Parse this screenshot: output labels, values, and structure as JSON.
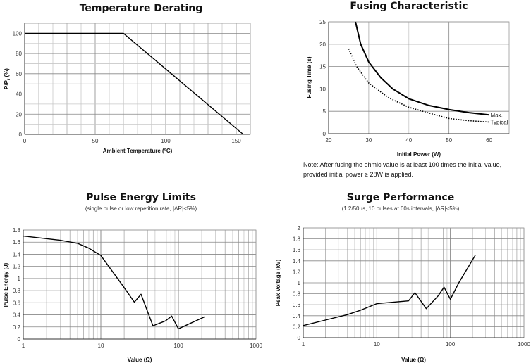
{
  "chart_data": [
    {
      "type": "line",
      "title": "Temperature Derating",
      "xlabel": "Ambient Temperature (°C)",
      "ylabel": "P/P",
      "ylabel_sub": "r",
      "ylabel_unit": " (%)",
      "xlim": [
        0,
        160
      ],
      "ylim": [
        0,
        110
      ],
      "xticks": [
        0,
        50,
        100,
        150
      ],
      "yticks": [
        0,
        20,
        40,
        60,
        80,
        100
      ],
      "grid": true,
      "series": [
        {
          "style": "solid",
          "x": [
            0,
            70,
            155
          ],
          "y": [
            100,
            100,
            0
          ]
        }
      ]
    },
    {
      "type": "line",
      "title": "Fusing Characteristic",
      "xlabel": "Initial Power (W)",
      "ylabel": "Fusing Time (s)",
      "xlim": [
        20,
        65
      ],
      "ylim": [
        0,
        25
      ],
      "xticks": [
        20,
        30,
        40,
        50,
        60
      ],
      "yticks": [
        0,
        5,
        10,
        15,
        20,
        25
      ],
      "grid": true,
      "series": [
        {
          "name": "Max.",
          "style": "solid",
          "x": [
            26.7,
            28,
            30,
            33,
            36,
            40,
            45,
            50,
            55,
            60
          ],
          "y": [
            25,
            20,
            16,
            12.5,
            10,
            7.8,
            6.3,
            5.4,
            4.7,
            4.2
          ]
        },
        {
          "name": "Typical",
          "style": "dotted",
          "x": [
            25,
            27,
            30,
            35,
            40,
            45,
            50,
            55,
            60
          ],
          "y": [
            19,
            15,
            11.3,
            8,
            5.9,
            4.6,
            3.4,
            2.9,
            2.6
          ]
        }
      ],
      "note": [
        "Note: After fusing the ohmic value is at least 100 times the initial value,",
        "provided initial power ≥ 28W is applied."
      ]
    },
    {
      "type": "line",
      "title": "Pulse Energy Limits",
      "subtitle": "(single pulse or low repetition rate, |ΔR|<5%)",
      "xlabel": "Value (Ω)",
      "ylabel": "Pulse Energy (J)",
      "xscale": "log",
      "xlim": [
        1,
        1000
      ],
      "ylim": [
        0,
        1.8
      ],
      "xticks": [
        1,
        10,
        100,
        1000
      ],
      "yticks": [
        0,
        0.2,
        0.4,
        0.6,
        0.8,
        1,
        1.2,
        1.4,
        1.6,
        1.8
      ],
      "ytick_labels": [
        "0",
        "0.2",
        "0.4",
        "0.6",
        "0.8",
        "1",
        "1.2",
        "1.4",
        "1.6",
        "1.8"
      ],
      "grid": true,
      "series": [
        {
          "style": "solid",
          "x": [
            1,
            3,
            5,
            7,
            10,
            20,
            27,
            33,
            47,
            68,
            82,
            100,
            220
          ],
          "y": [
            1.7,
            1.63,
            1.58,
            1.5,
            1.38,
            0.85,
            0.61,
            0.74,
            0.22,
            0.3,
            0.38,
            0.17,
            0.37
          ]
        }
      ]
    },
    {
      "type": "line",
      "title": "Surge Performance",
      "subtitle": "(1.2/50µs, 10 pulses at 60s intervals, |ΔR|<5%)",
      "xlabel": "Value (Ω)",
      "ylabel": "Peak Voltage (kV)",
      "xscale": "log",
      "xlim": [
        1,
        1000
      ],
      "ylim": [
        0,
        2
      ],
      "xticks": [
        1,
        10,
        100,
        1000
      ],
      "yticks": [
        0,
        0.2,
        0.4,
        0.6,
        0.8,
        1,
        1.2,
        1.4,
        1.6,
        1.8,
        2
      ],
      "ytick_labels": [
        "0",
        "0.2",
        "0.4",
        "0.6",
        "0.8",
        "1",
        "1.2",
        "1.4",
        "1.6",
        "1.8",
        "2"
      ],
      "grid": true,
      "series": [
        {
          "style": "solid",
          "x": [
            1,
            2,
            4,
            6,
            10,
            27,
            33,
            47,
            68,
            82,
            100,
            130,
            220
          ],
          "y": [
            0.22,
            0.32,
            0.42,
            0.5,
            0.62,
            0.67,
            0.82,
            0.53,
            0.76,
            0.92,
            0.7,
            1.0,
            1.51
          ]
        }
      ]
    }
  ]
}
